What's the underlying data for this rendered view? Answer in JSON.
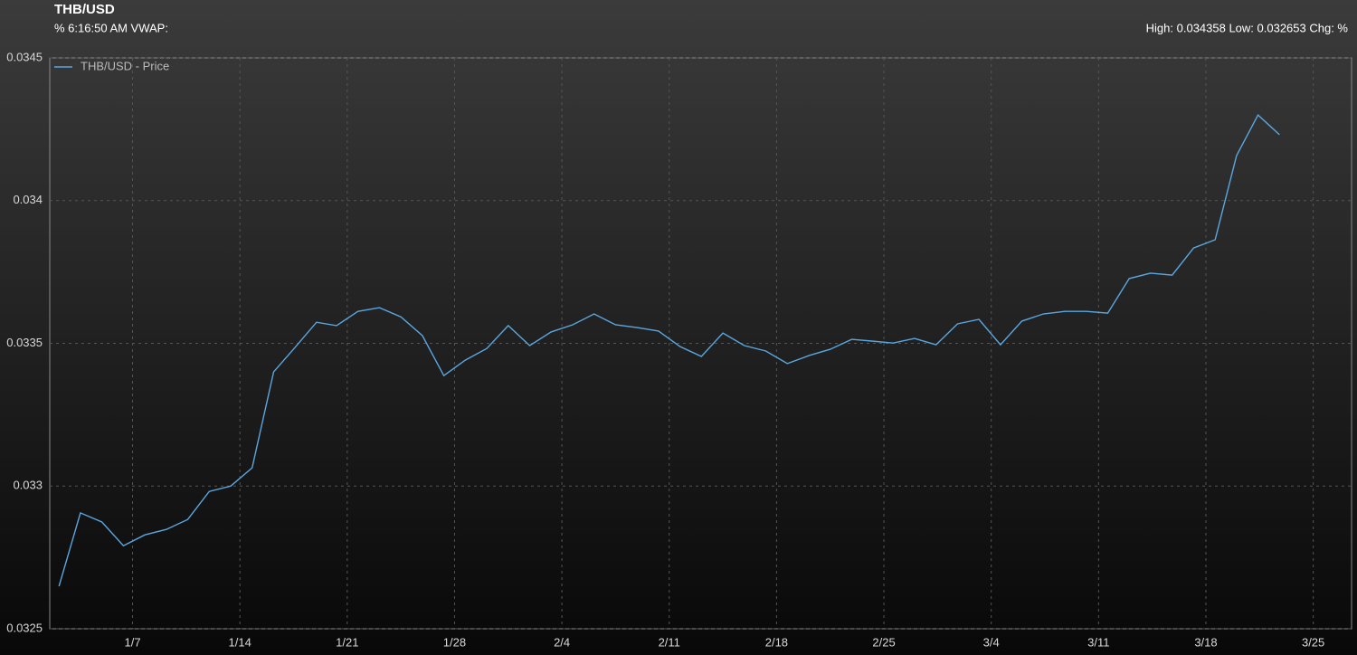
{
  "chart_data": {
    "type": "line",
    "title": "THB/USD",
    "subtitle": "% 6:16:50 AM VWAP:",
    "annotation": "High: 0.034358 Low: 0.032653 Chg: %",
    "x": [
      2.2,
      3.6,
      5.0,
      6.4,
      7.8,
      9.2,
      10.6,
      12.0,
      13.4,
      14.8,
      16.2,
      17.6,
      19.0,
      20.3,
      21.7,
      23.1,
      24.5,
      25.9,
      27.3,
      28.7,
      30.1,
      31.5,
      32.9,
      34.3,
      35.7,
      37.1,
      38.5,
      39.9,
      41.3,
      42.7,
      44.1,
      45.5,
      46.9,
      48.3,
      49.7,
      51.1,
      52.5,
      53.9,
      55.2,
      56.6,
      58.0,
      59.4,
      60.8,
      62.2,
      63.6,
      65.0,
      66.4,
      67.8,
      69.2,
      70.6,
      72.0,
      73.4,
      74.8,
      76.2,
      77.6,
      79.0,
      80.4,
      81.8
    ],
    "series": [
      {
        "name": "THB/USD - Price",
        "color": "#5aa7e0",
        "values": [
          0.032649,
          0.032906,
          0.032874,
          0.032791,
          0.032829,
          0.032848,
          0.032883,
          0.032981,
          0.033,
          0.033064,
          0.0334,
          0.033486,
          0.033574,
          0.033562,
          0.033612,
          0.033625,
          0.033593,
          0.033527,
          0.033387,
          0.033441,
          0.033482,
          0.033562,
          0.033492,
          0.03354,
          0.033565,
          0.033603,
          0.033565,
          0.033555,
          0.033543,
          0.033489,
          0.033454,
          0.033536,
          0.033492,
          0.033473,
          0.033429,
          0.033457,
          0.033479,
          0.033514,
          0.033508,
          0.033501,
          0.033517,
          0.033495,
          0.033568,
          0.033584,
          0.033495,
          0.033578,
          0.033603,
          0.033612,
          0.033612,
          0.033606,
          0.033727,
          0.033746,
          0.033739,
          0.033834,
          0.033863,
          0.034158,
          0.0343,
          0.034231
        ]
      }
    ],
    "xlim": [
      1.6,
      86.5
    ],
    "xticks": [
      {
        "value": 7,
        "label": "1/7"
      },
      {
        "value": 14,
        "label": "1/14"
      },
      {
        "value": 21,
        "label": "1/21"
      },
      {
        "value": 28,
        "label": "1/28"
      },
      {
        "value": 35,
        "label": "2/4"
      },
      {
        "value": 42,
        "label": "2/11"
      },
      {
        "value": 49,
        "label": "2/18"
      },
      {
        "value": 56,
        "label": "2/25"
      },
      {
        "value": 63,
        "label": "3/4"
      },
      {
        "value": 70,
        "label": "3/11"
      },
      {
        "value": 77,
        "label": "3/18"
      },
      {
        "value": 84,
        "label": "3/25"
      }
    ],
    "ylim": [
      0.0325,
      0.0345
    ],
    "yticks": [
      0.0325,
      0.033,
      0.0335,
      0.034,
      0.0345
    ],
    "grid": true,
    "legend": "top-left"
  }
}
